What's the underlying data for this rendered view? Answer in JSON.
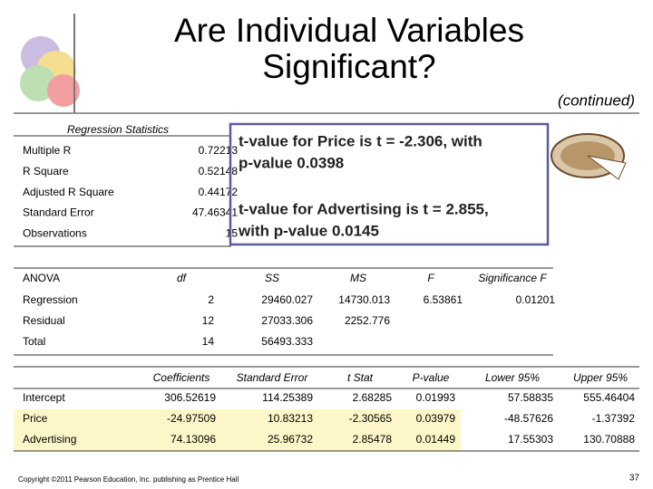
{
  "title_lines": [
    "Are Individual Variables",
    "Significant?"
  ],
  "continued": "(continued)",
  "regression_statistics": {
    "header": "Regression Statistics",
    "rows": [
      [
        "Multiple R",
        "0.72213"
      ],
      [
        "R Square",
        "0.52148"
      ],
      [
        "Adjusted R Square",
        "0.44172"
      ],
      [
        "Standard Error",
        "47.46341"
      ],
      [
        "Observations",
        "15"
      ]
    ]
  },
  "callout": {
    "block1": [
      "t-value for Price is  t = -2.306, with",
      "p-value 0.0398"
    ],
    "block2": [
      "t-value for Advertising is t = 2.855,",
      "with p-value 0.0145"
    ]
  },
  "anova": {
    "header": [
      "ANOVA",
      "df",
      "SS",
      "MS",
      "F",
      "Significance F"
    ],
    "rows": [
      [
        "Regression",
        "2",
        "29460.027",
        "14730.013",
        "6.53861",
        "0.01201"
      ],
      [
        "Residual",
        "12",
        "27033.306",
        "2252.776"
      ],
      [
        "Total",
        "14",
        "56493.333"
      ]
    ]
  },
  "coefficients": {
    "header": [
      "Coefficients",
      "Standard Error",
      "t Stat",
      "P-value",
      "Lower 95%",
      "Upper 95%"
    ],
    "rows": [
      [
        "Intercept",
        "306.52619",
        "114.25389",
        "2.68285",
        "0.01993",
        "57.58835",
        "555.46404"
      ],
      [
        "Price",
        "-24.97509",
        "10.83213",
        "-2.30565",
        "0.03979",
        "-48.57626",
        "-1.37392"
      ],
      [
        "Advertising",
        "74.13096",
        "25.96732",
        "2.85478",
        "0.01449",
        "17.55303",
        "130.70888"
      ]
    ]
  },
  "footer": {
    "copyright": "Copyright ©2011 Pearson Education, Inc. publishing as Prentice Hall",
    "page": "37"
  }
}
